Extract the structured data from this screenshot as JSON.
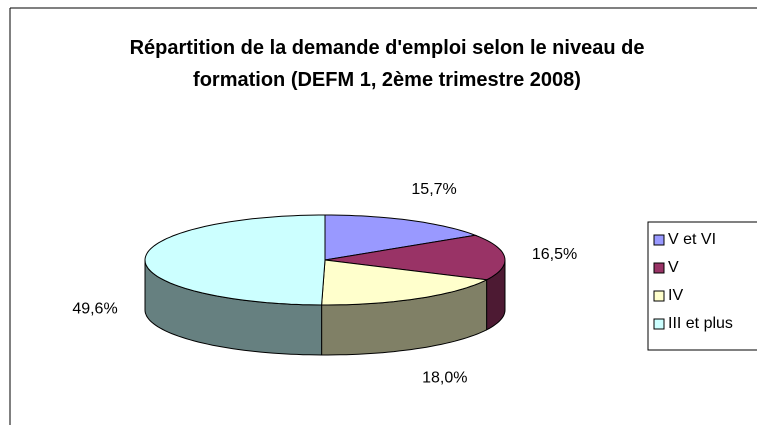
{
  "chart_data": {
    "type": "pie",
    "title": "Répartition de la demande d'emploi selon le niveau de formation (DEFM 1, 2ème trimestre 2008)",
    "categories": [
      "V et VI",
      "V",
      "IV",
      "III et plus"
    ],
    "values": [
      15.7,
      16.5,
      18.0,
      49.6
    ],
    "value_labels": [
      "15,7%",
      "16,5%",
      "18,0%",
      "49,6%"
    ],
    "colors": [
      "#9999ff",
      "#993366",
      "#ffffcc",
      "#ccffff"
    ],
    "legend": "right"
  }
}
